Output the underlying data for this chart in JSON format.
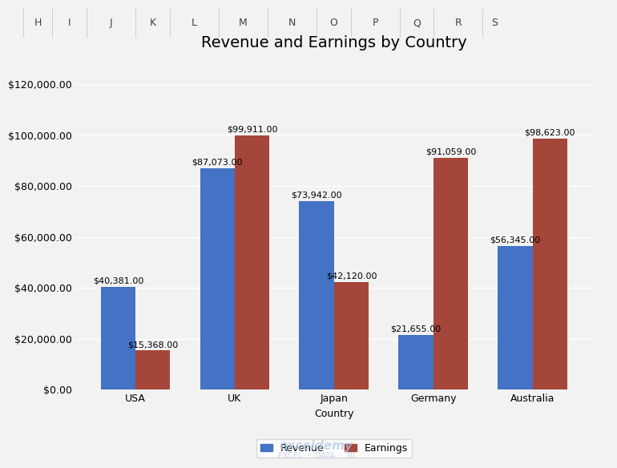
{
  "title": "Revenue and Earnings by Country",
  "xlabel": "Country",
  "ylabel": "",
  "categories": [
    "USA",
    "UK",
    "Japan",
    "Germany",
    "Australia"
  ],
  "revenue": [
    40381,
    87073,
    73942,
    21655,
    56345
  ],
  "earnings": [
    15368,
    99911,
    42120,
    91059,
    98623
  ],
  "revenue_color": "#4472C4",
  "earnings_color": "#A5463A",
  "ylim": [
    0,
    130000
  ],
  "yticks": [
    0,
    20000,
    40000,
    60000,
    80000,
    100000,
    120000
  ],
  "ytick_labels": [
    "$0.00",
    "$20,000.00",
    "$40,000.00",
    "$60,000.00",
    "$80,000.00",
    "$100,000.00",
    "$120,000.00"
  ],
  "bar_width": 0.35,
  "background_color": "#F2F2F2",
  "grid_color": "#FFFFFF",
  "title_fontsize": 14,
  "label_fontsize": 9,
  "tick_fontsize": 9,
  "annotation_fontsize": 8,
  "legend_labels": [
    "Revenue",
    "Earnings"
  ],
  "header_labels": [
    "H",
    "I",
    "J",
    "K",
    "L",
    "M",
    "N",
    "O",
    "P",
    "Q",
    "R",
    "S"
  ],
  "header_bg": "#D9D9D9",
  "watermark_line1": "exceldemy",
  "watermark_line2": "EXCEL  ·  DATA  ·  BI"
}
